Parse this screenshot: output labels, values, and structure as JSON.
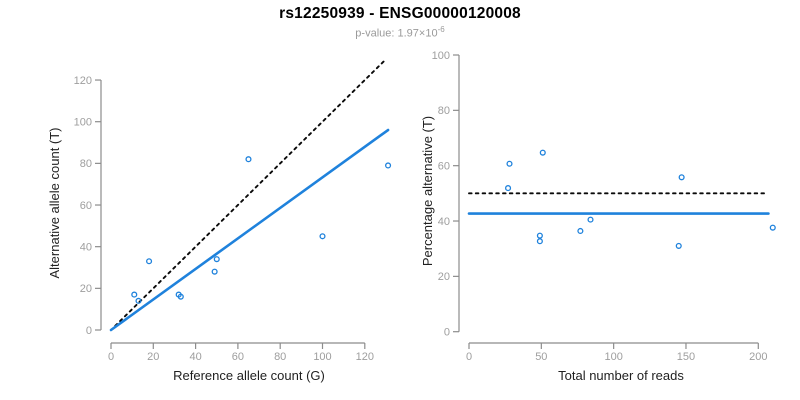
{
  "header": {
    "title": "rs12250939 - ENSG00000120008",
    "p_label": "p-value: 1.97×10",
    "p_exponent": "-6"
  },
  "colors": {
    "accent_blue": "#1f82dc",
    "dotted_black": "#0a0a0a",
    "axis_gray": "#8c8c8c",
    "tick_label_gray": "#9e9e9e",
    "text_black": "#1f1f1f",
    "subtitle_gray": "#9a9a9a"
  },
  "chart_data": [
    {
      "type": "scatter",
      "panel": "left",
      "xlabel": "Reference allele count (G)",
      "ylabel": "Alternative allele count (T)",
      "xlim": [
        0,
        132
      ],
      "ylim": [
        0,
        130
      ],
      "xticks": [
        0,
        20,
        40,
        60,
        80,
        100,
        120
      ],
      "yticks": [
        0,
        20,
        40,
        60,
        80,
        100,
        120
      ],
      "grid": false,
      "legend": null,
      "points": [
        [
          11,
          17
        ],
        [
          13,
          14
        ],
        [
          18,
          33
        ],
        [
          32,
          17
        ],
        [
          33,
          16
        ],
        [
          49,
          28
        ],
        [
          50,
          34
        ],
        [
          65,
          82
        ],
        [
          100,
          45
        ],
        [
          131,
          79
        ]
      ],
      "lines": [
        {
          "name": "identity-line",
          "style": "dotted",
          "x1": 2,
          "y1": 2,
          "x2": 130,
          "y2": 130
        },
        {
          "name": "fit-line",
          "style": "solid",
          "x1": 0,
          "y1": 0,
          "x2": 131,
          "y2": 96
        }
      ]
    },
    {
      "type": "scatter",
      "panel": "right",
      "xlabel": "Total number of reads",
      "ylabel": "Percentage alternative (T)",
      "xlim": [
        0,
        212
      ],
      "ylim": [
        0,
        100
      ],
      "xticks": [
        0,
        50,
        100,
        150,
        200
      ],
      "yticks": [
        0,
        20,
        40,
        60,
        80,
        100
      ],
      "grid": false,
      "legend": null,
      "points": [
        [
          28,
          60.7
        ],
        [
          27,
          51.9
        ],
        [
          51,
          64.7
        ],
        [
          49,
          34.7
        ],
        [
          49,
          32.7
        ],
        [
          77,
          36.4
        ],
        [
          84,
          40.5
        ],
        [
          147,
          55.8
        ],
        [
          145,
          31.0
        ],
        [
          210,
          37.6
        ]
      ],
      "lines": [
        {
          "name": "null-line",
          "style": "dotted",
          "x1": 0,
          "y1": 50,
          "x2": 206,
          "y2": 50
        },
        {
          "name": "fit-line",
          "style": "solid",
          "x1": 0,
          "y1": 42.7,
          "x2": 207,
          "y2": 42.7
        }
      ]
    }
  ]
}
